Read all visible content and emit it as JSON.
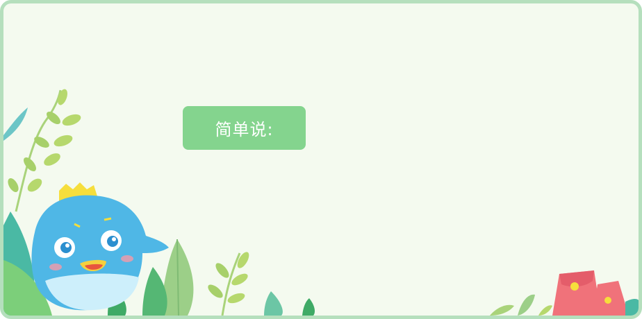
{
  "label": {
    "text": "简单说:"
  },
  "colors": {
    "frame_border": "#b5dfbd",
    "background": "#f4faef",
    "label_bg": "#84d48e",
    "mascot": "#4fb7e6",
    "crown": "#f6de3c",
    "red_envelope": "#f0727a"
  }
}
